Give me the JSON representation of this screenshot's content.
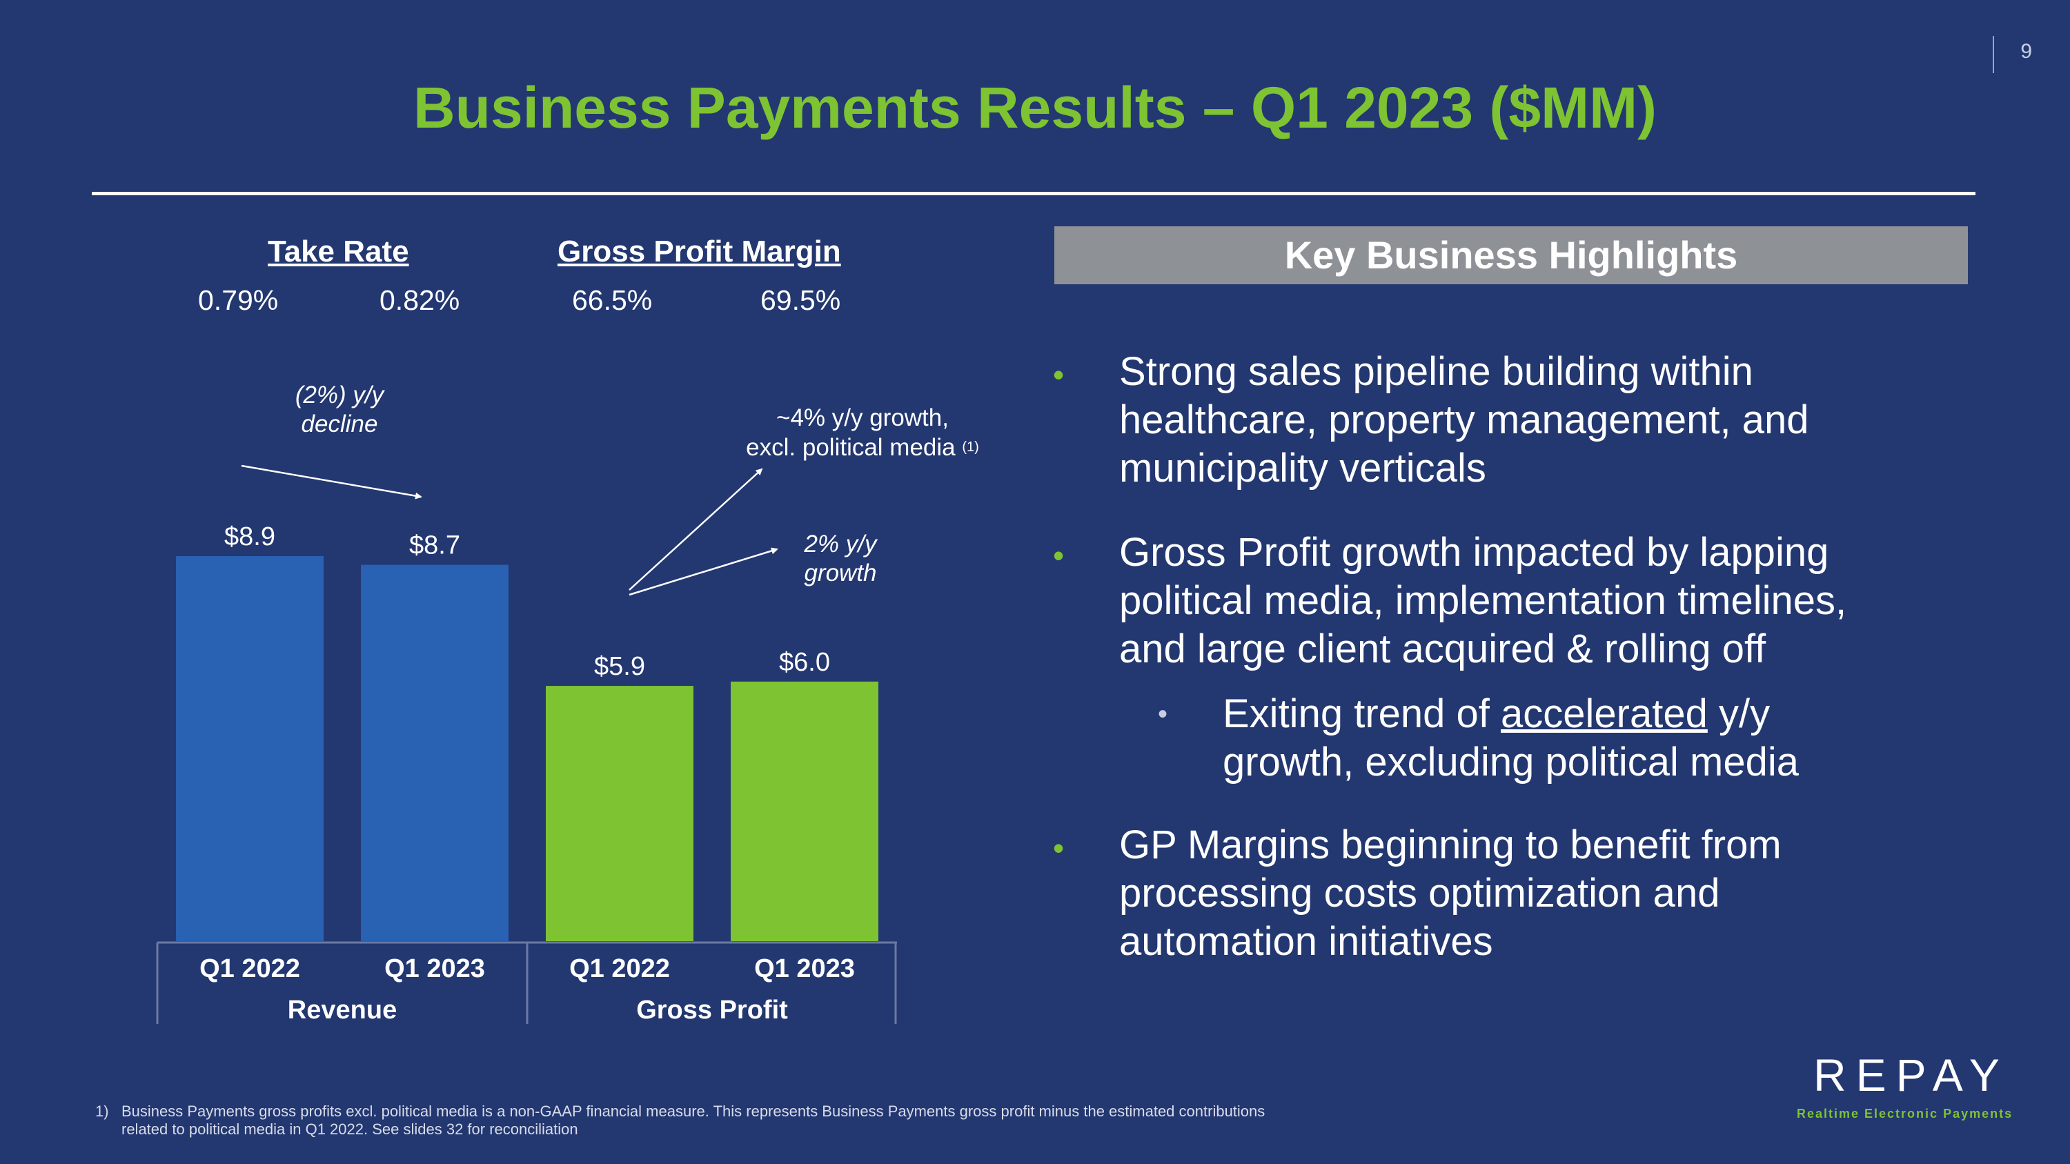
{
  "page_number": "9",
  "title": "Business Payments Results – Q1 2023 ($MM)",
  "metrics": {
    "take_rate": {
      "label": "Take Rate",
      "values": [
        "0.79%",
        "0.82%"
      ]
    },
    "gross_profit_margin": {
      "label": "Gross Profit Margin",
      "values": [
        "66.5%",
        "69.5%"
      ]
    }
  },
  "annotations": {
    "revenue_change": [
      "(2%) y/y",
      "decline"
    ],
    "gp_growth_excl": [
      "~4% y/y growth,",
      "excl. political media",
      "(1)"
    ],
    "gp_growth": [
      "2% y/y",
      "growth"
    ]
  },
  "chart_data": {
    "type": "bar",
    "groups": [
      "Revenue",
      "Gross Profit"
    ],
    "categories": [
      "Q1 2022",
      "Q1 2023",
      "Q1 2022",
      "Q1 2023"
    ],
    "values": [
      8.9,
      8.7,
      5.9,
      6.0
    ],
    "value_labels": [
      "$8.9",
      "$8.7",
      "$5.9",
      "$6.0"
    ],
    "colors": [
      "#2961b3",
      "#2961b3",
      "#7ec332",
      "#7ec332"
    ],
    "ylim": [
      0,
      8.9
    ],
    "grid": false
  },
  "highlights": {
    "header": "Key Business Highlights",
    "bullets": [
      [
        "Strong sales pipeline building within",
        "healthcare, property management, and",
        "municipality verticals"
      ],
      [
        "Gross Profit growth impacted by lapping",
        "political media, implementation timelines,",
        "and large client acquired & rolling off"
      ],
      [
        "GP Margins beginning to benefit from",
        "processing costs optimization and",
        "automation initiatives"
      ]
    ],
    "sub_bullet": {
      "pre": "Exiting trend of ",
      "underlined": "accelerated",
      "post": " y/y",
      "line2": "growth, excluding political media"
    },
    "bullet_glyph": "•"
  },
  "footnote": {
    "number": "1)",
    "lines": [
      "Business Payments gross profits excl. political media is a non-GAAP financial measure. This represents Business Payments gross profit minus the estimated contributions",
      "related to political media in Q1 2022. See slides 32 for reconciliation"
    ]
  },
  "logo": {
    "wordmark": "REPAY",
    "tagline": "Realtime Electronic Payments"
  }
}
